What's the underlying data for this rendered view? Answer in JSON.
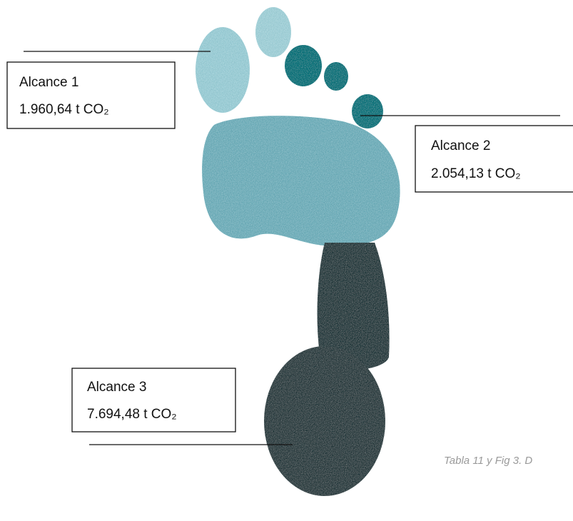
{
  "labels": [
    {
      "name": "Alcance 1",
      "value": "1.960,64 t CO₂"
    },
    {
      "name": "Alcance 2",
      "value": "2.054,13 t CO₂"
    },
    {
      "name": "Alcance 3",
      "value": "7.694,48 t CO₂"
    }
  ],
  "caption": "Tabla 11 y Fig 3. D"
}
